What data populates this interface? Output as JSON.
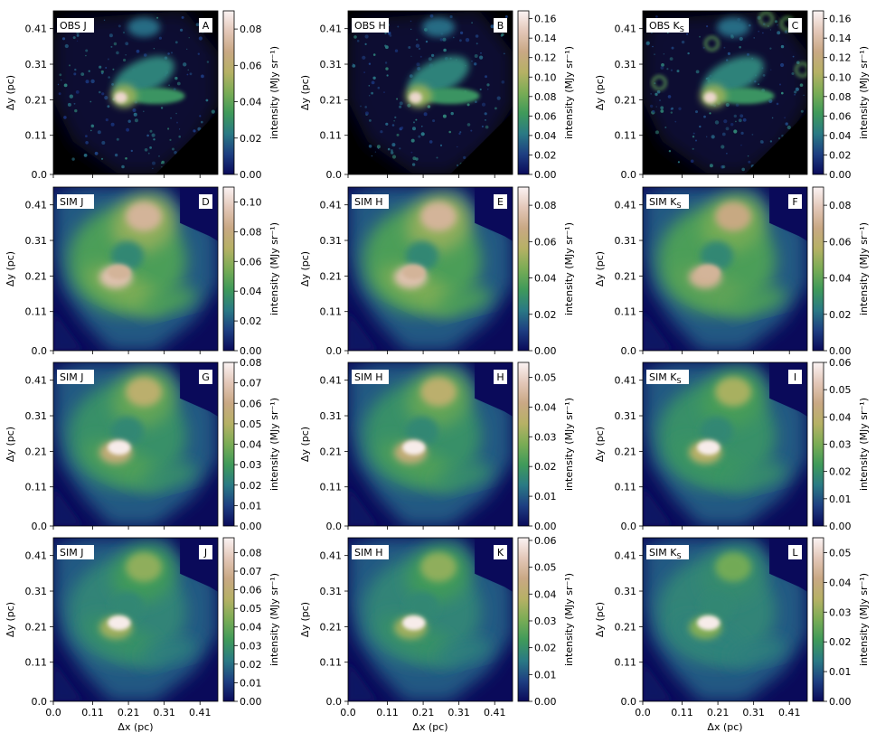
{
  "chart_data": {
    "type": "heatmap",
    "xlabel": "Δx (pc)",
    "ylabel": "Δy (pc)",
    "colorbar_label": "intensity (MJy sr⁻¹)",
    "xlim": [
      0.0,
      0.46
    ],
    "ylim": [
      0.0,
      0.46
    ],
    "x_ticks": [
      "0.0",
      "0.11",
      "0.21",
      "0.31",
      "0.41"
    ],
    "y_ticks": [
      "0.0",
      "0.11",
      "0.21",
      "0.31",
      "0.41"
    ],
    "colormap": {
      "name": "gist_earth",
      "stops": [
        "#0a0a5a",
        "#1e3f82",
        "#2a7a84",
        "#3f9a5a",
        "#7aac55",
        "#b6b165",
        "#c9a884",
        "#e3c7b8",
        "#fbf3f3"
      ]
    },
    "panels": [
      {
        "id": "A",
        "title": "OBS J",
        "type": "obs",
        "band": "J",
        "vmax": 0.09,
        "cbar_ticks": [
          "0.00",
          "0.02",
          "0.04",
          "0.06",
          "0.08"
        ],
        "cbar_values": [
          0.0,
          0.02,
          0.04,
          0.06,
          0.08
        ]
      },
      {
        "id": "B",
        "title": "OBS H",
        "type": "obs",
        "band": "H",
        "vmax": 0.168,
        "cbar_ticks": [
          "0.00",
          "0.02",
          "0.04",
          "0.06",
          "0.08",
          "0.10",
          "0.12",
          "0.14",
          "0.16"
        ],
        "cbar_values": [
          0.0,
          0.02,
          0.04,
          0.06,
          0.08,
          0.1,
          0.12,
          0.14,
          0.16
        ]
      },
      {
        "id": "C",
        "title": "OBS K",
        "title_sub": "S",
        "type": "obs",
        "band": "K",
        "vmax": 0.168,
        "cbar_ticks": [
          "0.00",
          "0.02",
          "0.04",
          "0.06",
          "0.08",
          "0.10",
          "0.12",
          "0.14",
          "0.16"
        ],
        "cbar_values": [
          0.0,
          0.02,
          0.04,
          0.06,
          0.08,
          0.1,
          0.12,
          0.14,
          0.16
        ]
      },
      {
        "id": "D",
        "title": "SIM J",
        "type": "sim",
        "band": "J",
        "vmax": 0.11,
        "cbar_ticks": [
          "0.00",
          "0.02",
          "0.04",
          "0.06",
          "0.08",
          "0.10"
        ],
        "cbar_values": [
          0.0,
          0.02,
          0.04,
          0.06,
          0.08,
          0.1
        ]
      },
      {
        "id": "E",
        "title": "SIM H",
        "type": "sim",
        "band": "H",
        "vmax": 0.09,
        "cbar_ticks": [
          "0.00",
          "0.02",
          "0.04",
          "0.06",
          "0.08"
        ],
        "cbar_values": [
          0.0,
          0.02,
          0.04,
          0.06,
          0.08
        ]
      },
      {
        "id": "F",
        "title": "SIM K",
        "title_sub": "S",
        "type": "sim",
        "band": "K",
        "vmax": 0.09,
        "cbar_ticks": [
          "0.00",
          "0.02",
          "0.04",
          "0.06",
          "0.08"
        ],
        "cbar_values": [
          0.0,
          0.02,
          0.04,
          0.06,
          0.08
        ]
      },
      {
        "id": "G",
        "title": "SIM J",
        "type": "sim",
        "band": "J",
        "vmax": 0.08,
        "cbar_ticks": [
          "0.00",
          "0.01",
          "0.02",
          "0.03",
          "0.04",
          "0.05",
          "0.06",
          "0.07",
          "0.08"
        ],
        "cbar_values": [
          0.0,
          0.01,
          0.02,
          0.03,
          0.04,
          0.05,
          0.06,
          0.07,
          0.08
        ]
      },
      {
        "id": "H",
        "title": "SIM H",
        "type": "sim",
        "band": "H",
        "vmax": 0.055,
        "cbar_ticks": [
          "0.00",
          "0.01",
          "0.02",
          "0.03",
          "0.04",
          "0.05"
        ],
        "cbar_values": [
          0.0,
          0.01,
          0.02,
          0.03,
          0.04,
          0.05
        ]
      },
      {
        "id": "I",
        "title": "SIM K",
        "title_sub": "S",
        "type": "sim",
        "band": "K",
        "vmax": 0.06,
        "cbar_ticks": [
          "0.00",
          "0.01",
          "0.02",
          "0.03",
          "0.04",
          "0.05",
          "0.06"
        ],
        "cbar_values": [
          0.0,
          0.01,
          0.02,
          0.03,
          0.04,
          0.05,
          0.06
        ]
      },
      {
        "id": "J",
        "title": "SIM J",
        "type": "sim",
        "band": "J",
        "vmax": 0.088,
        "cbar_ticks": [
          "0.00",
          "0.01",
          "0.02",
          "0.03",
          "0.04",
          "0.05",
          "0.06",
          "0.07",
          "0.08"
        ],
        "cbar_values": [
          0.0,
          0.01,
          0.02,
          0.03,
          0.04,
          0.05,
          0.06,
          0.07,
          0.08
        ]
      },
      {
        "id": "K",
        "title": "SIM H",
        "type": "sim",
        "band": "H",
        "vmax": 0.061,
        "cbar_ticks": [
          "0.00",
          "0.01",
          "0.02",
          "0.03",
          "0.04",
          "0.05",
          "0.06"
        ],
        "cbar_values": [
          0.0,
          0.01,
          0.02,
          0.03,
          0.04,
          0.05,
          0.06
        ]
      },
      {
        "id": "L",
        "title": "SIM K",
        "title_sub": "S",
        "type": "sim",
        "band": "K",
        "vmax": 0.055,
        "cbar_ticks": [
          "0.00",
          "0.01",
          "0.02",
          "0.03",
          "0.04",
          "0.05"
        ],
        "cbar_values": [
          0.0,
          0.01,
          0.02,
          0.03,
          0.04,
          0.05
        ]
      }
    ]
  }
}
